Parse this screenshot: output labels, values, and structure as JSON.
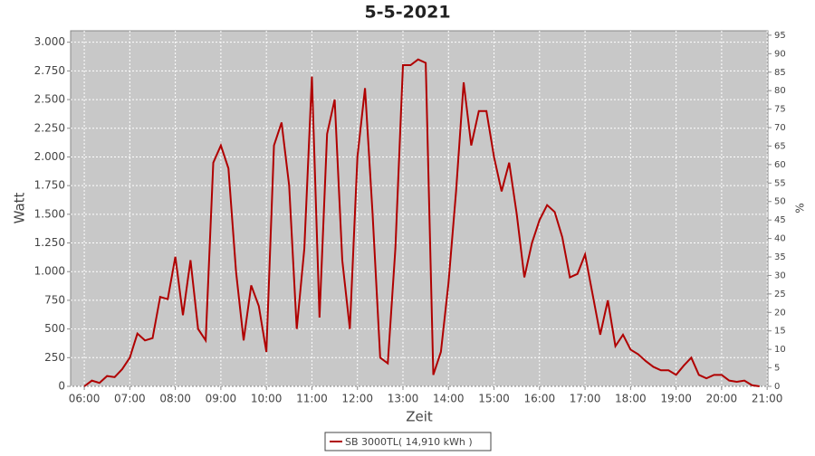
{
  "chart_data": {
    "type": "line",
    "title": "5-5-2021",
    "xlabel": "Zeit",
    "ylabel": "Watt",
    "y2label": "%",
    "x": [
      "06:00",
      "06:10",
      "06:20",
      "06:30",
      "06:40",
      "06:50",
      "07:00",
      "07:10",
      "07:20",
      "07:30",
      "07:40",
      "07:50",
      "08:00",
      "08:10",
      "08:20",
      "08:30",
      "08:40",
      "08:50",
      "09:00",
      "09:10",
      "09:20",
      "09:30",
      "09:40",
      "09:50",
      "10:00",
      "10:10",
      "10:20",
      "10:30",
      "10:40",
      "10:50",
      "11:00",
      "11:10",
      "11:20",
      "11:30",
      "11:40",
      "11:50",
      "12:00",
      "12:10",
      "12:20",
      "12:30",
      "12:40",
      "12:50",
      "13:00",
      "13:10",
      "13:20",
      "13:30",
      "13:40",
      "13:50",
      "14:00",
      "14:10",
      "14:20",
      "14:30",
      "14:40",
      "14:50",
      "15:00",
      "15:10",
      "15:20",
      "15:30",
      "15:40",
      "15:50",
      "16:00",
      "16:10",
      "16:20",
      "16:30",
      "16:40",
      "16:50",
      "17:00",
      "17:10",
      "17:20",
      "17:30",
      "17:40",
      "17:50",
      "18:00",
      "18:10",
      "18:20",
      "18:30",
      "18:40",
      "18:50",
      "19:00",
      "19:10",
      "19:20",
      "19:30",
      "19:40",
      "19:50",
      "20:00",
      "20:10",
      "20:20",
      "20:30",
      "20:40",
      "20:50"
    ],
    "series": [
      {
        "name": "SB 3000TL( 14,910 kWh )",
        "color": "#b00000",
        "values": [
          0,
          50,
          30,
          90,
          80,
          150,
          250,
          460,
          400,
          420,
          780,
          760,
          1130,
          620,
          1100,
          500,
          400,
          1950,
          2100,
          1900,
          1000,
          400,
          880,
          700,
          300,
          2100,
          2300,
          1750,
          500,
          1200,
          2700,
          600,
          2200,
          2500,
          1100,
          500,
          2000,
          2600,
          1500,
          250,
          200,
          1200,
          2800,
          2800,
          2850,
          2820,
          100,
          300,
          900,
          1700,
          2650,
          2100,
          2400,
          2400,
          2000,
          1700,
          1950,
          1500,
          950,
          1250,
          1450,
          1580,
          1520,
          1300,
          950,
          980,
          1150,
          800,
          450,
          750,
          350,
          450,
          320,
          280,
          220,
          170,
          140,
          140,
          100,
          180,
          250,
          100,
          70,
          100,
          100,
          50,
          40,
          50,
          10,
          0
        ]
      }
    ],
    "xlim": [
      "05:42",
      "21:01"
    ],
    "xticks": [
      "06:00",
      "07:00",
      "08:00",
      "09:00",
      "10:00",
      "11:00",
      "12:00",
      "13:00",
      "14:00",
      "15:00",
      "16:00",
      "17:00",
      "18:00",
      "19:00",
      "20:00",
      "21:00"
    ],
    "ylim": [
      0,
      3100
    ],
    "yticks": [
      0,
      {
        "value": 250,
        "label": "250"
      },
      500,
      750,
      {
        "value": 1000,
        "label": "1.000"
      },
      {
        "value": 1250,
        "label": "1.250"
      },
      {
        "value": 1500,
        "label": "1.500"
      },
      {
        "value": 1750,
        "label": "1.750"
      },
      {
        "value": 2000,
        "label": "2.000"
      },
      {
        "value": 2250,
        "label": "2.250"
      },
      {
        "value": 2500,
        "label": "2.500"
      },
      {
        "value": 2750,
        "label": "2.750"
      },
      {
        "value": 3000,
        "label": "3.000"
      }
    ],
    "y2lim": [
      0,
      96.2
    ],
    "y2ticks": [
      0,
      5,
      10,
      15,
      20,
      25,
      30,
      35,
      40,
      45,
      50,
      55,
      60,
      65,
      70,
      75,
      80,
      85,
      90,
      95
    ],
    "grid": true
  }
}
